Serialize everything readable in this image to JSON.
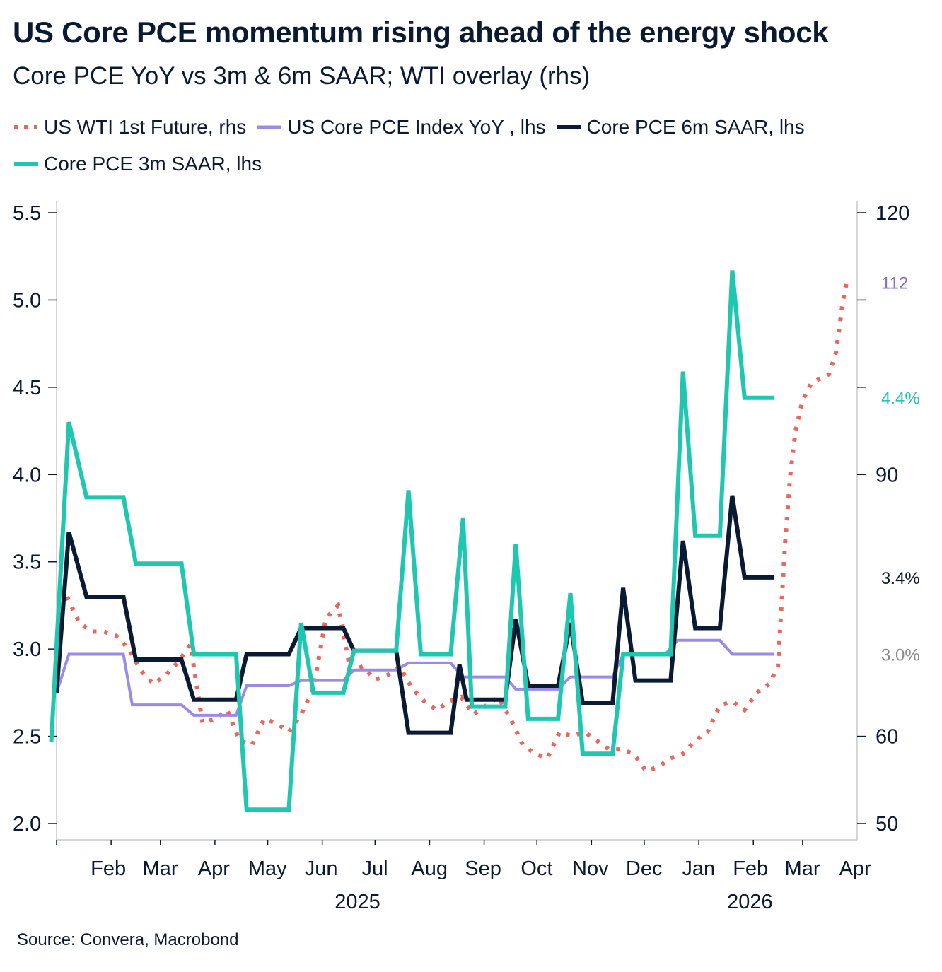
{
  "chart_data": {
    "type": "line",
    "title": "US Core PCE momentum rising ahead of the energy shock",
    "subtitle": "Core PCE YoY vs 3m & 6m SAAR; WTI overlay (rhs)",
    "source": "Source: Convera, Macrobond",
    "legend_placement": "top",
    "grid": false,
    "x_tick_labels": [
      "Feb",
      "Mar",
      "Apr",
      "May",
      "Jun",
      "Jul",
      "Aug",
      "Sep",
      "Oct",
      "Nov",
      "Dec",
      "Jan",
      "Feb",
      "Mar",
      "Apr"
    ],
    "year_labels": [
      "2025",
      "2026"
    ],
    "xlim": [
      "2025-01-15",
      "2026-04-15"
    ],
    "y_left": {
      "ylim": [
        2.0,
        5.5
      ],
      "ticks": [
        "2.0",
        "2.5",
        "3.0",
        "3.5",
        "4.0",
        "4.5",
        "5.0",
        "5.5"
      ]
    },
    "y_right": {
      "ylim": [
        50,
        120
      ],
      "ticks": [
        "50",
        "60",
        "90",
        "120"
      ]
    },
    "series": [
      {
        "name": "US WTI 1st Future, rhs",
        "axis": "right",
        "style": "dotted",
        "color": "#e8685e",
        "points": [
          [
            "2025-01-21",
            76
          ],
          [
            "2025-01-28",
            73
          ],
          [
            "2025-02-04",
            72
          ],
          [
            "2025-02-11",
            72
          ],
          [
            "2025-02-18",
            71.5
          ],
          [
            "2025-02-25",
            70
          ],
          [
            "2025-03-04",
            67.5
          ],
          [
            "2025-03-11",
            66
          ],
          [
            "2025-03-18",
            67
          ],
          [
            "2025-03-25",
            68.5
          ],
          [
            "2025-04-01",
            70.5
          ],
          [
            "2025-04-08",
            61.5
          ],
          [
            "2025-04-15",
            62
          ],
          [
            "2025-04-22",
            63
          ],
          [
            "2025-04-29",
            59.5
          ],
          [
            "2025-05-06",
            59
          ],
          [
            "2025-05-13",
            62
          ],
          [
            "2025-05-20",
            61.5
          ],
          [
            "2025-05-27",
            60.5
          ],
          [
            "2025-06-03",
            62.5
          ],
          [
            "2025-06-10",
            65.5
          ],
          [
            "2025-06-17",
            73.5
          ],
          [
            "2025-06-24",
            75
          ],
          [
            "2025-07-01",
            67.5
          ],
          [
            "2025-07-08",
            68
          ],
          [
            "2025-07-15",
            66.5
          ],
          [
            "2025-07-22",
            67
          ],
          [
            "2025-07-29",
            68
          ],
          [
            "2025-08-05",
            65.5
          ],
          [
            "2025-08-12",
            64
          ],
          [
            "2025-08-19",
            63
          ],
          [
            "2025-08-26",
            64
          ],
          [
            "2025-09-02",
            64.5
          ],
          [
            "2025-09-09",
            62.5
          ],
          [
            "2025-09-16",
            63.5
          ],
          [
            "2025-09-23",
            64.5
          ],
          [
            "2025-09-30",
            62
          ],
          [
            "2025-10-07",
            59
          ],
          [
            "2025-10-14",
            58
          ],
          [
            "2025-10-21",
            57.5
          ],
          [
            "2025-10-28",
            60.5
          ],
          [
            "2025-11-04",
            60
          ],
          [
            "2025-11-11",
            60.5
          ],
          [
            "2025-11-18",
            59.5
          ],
          [
            "2025-11-25",
            58.5
          ],
          [
            "2025-12-02",
            58.5
          ],
          [
            "2025-12-09",
            58
          ],
          [
            "2025-12-16",
            56
          ],
          [
            "2025-12-23",
            56.5
          ],
          [
            "2025-12-30",
            57.5
          ],
          [
            "2026-01-06",
            58
          ],
          [
            "2026-01-13",
            59.5
          ],
          [
            "2026-01-20",
            60.5
          ],
          [
            "2026-01-27",
            63.5
          ],
          [
            "2026-02-03",
            64
          ],
          [
            "2026-02-10",
            63
          ],
          [
            "2026-02-17",
            65
          ],
          [
            "2026-02-24",
            66
          ],
          [
            "2026-03-01",
            68
          ],
          [
            "2026-03-03",
            75
          ],
          [
            "2026-03-05",
            82
          ],
          [
            "2026-03-08",
            90
          ],
          [
            "2026-03-11",
            95
          ],
          [
            "2026-03-15",
            98.5
          ],
          [
            "2026-03-20",
            100.5
          ],
          [
            "2026-03-25",
            101
          ],
          [
            "2026-03-30",
            101.5
          ],
          [
            "2026-04-03",
            104
          ],
          [
            "2026-04-07",
            110
          ],
          [
            "2026-04-09",
            112
          ]
        ]
      },
      {
        "name": "US Core PCE Index YoY , lhs",
        "axis": "left",
        "style": "solid",
        "color": "#9b8ae6",
        "points": [
          [
            "2025-01-15",
            2.75
          ],
          [
            "2025-01-22",
            2.97
          ],
          [
            "2025-02-22",
            2.97
          ],
          [
            "2025-02-27",
            2.68
          ],
          [
            "2025-03-27",
            2.68
          ],
          [
            "2025-04-03",
            2.62
          ],
          [
            "2025-04-27",
            2.62
          ],
          [
            "2025-05-03",
            2.79
          ],
          [
            "2025-05-27",
            2.79
          ],
          [
            "2025-06-03",
            2.82
          ],
          [
            "2025-06-27",
            2.82
          ],
          [
            "2025-07-03",
            2.88
          ],
          [
            "2025-07-27",
            2.88
          ],
          [
            "2025-08-03",
            2.92
          ],
          [
            "2025-08-27",
            2.92
          ],
          [
            "2025-09-03",
            2.84
          ],
          [
            "2025-09-27",
            2.84
          ],
          [
            "2025-10-03",
            2.77
          ],
          [
            "2025-10-27",
            2.77
          ],
          [
            "2025-11-03",
            2.84
          ],
          [
            "2025-11-27",
            2.84
          ],
          [
            "2025-12-03",
            2.97
          ],
          [
            "2025-12-27",
            2.97
          ],
          [
            "2026-01-03",
            3.05
          ],
          [
            "2026-01-27",
            3.05
          ],
          [
            "2026-02-03",
            2.97
          ],
          [
            "2026-02-27",
            2.97
          ]
        ]
      },
      {
        "name": "Core PCE 6m SAAR, lhs",
        "axis": "left",
        "style": "solid",
        "color": "#0b1a33",
        "points": [
          [
            "2025-01-15",
            2.75
          ],
          [
            "2025-01-22",
            3.67
          ],
          [
            "2025-02-01",
            3.3
          ],
          [
            "2025-02-22",
            3.3
          ],
          [
            "2025-03-01",
            2.94
          ],
          [
            "2025-03-27",
            2.94
          ],
          [
            "2025-04-03",
            2.71
          ],
          [
            "2025-04-27",
            2.71
          ],
          [
            "2025-05-03",
            2.97
          ],
          [
            "2025-05-27",
            2.97
          ],
          [
            "2025-06-03",
            3.12
          ],
          [
            "2025-06-27",
            3.12
          ],
          [
            "2025-07-03",
            2.99
          ],
          [
            "2025-07-27",
            2.99
          ],
          [
            "2025-08-03",
            2.52
          ],
          [
            "2025-08-27",
            2.52
          ],
          [
            "2025-09-01",
            2.91
          ],
          [
            "2025-09-05",
            2.71
          ],
          [
            "2025-09-27",
            2.71
          ],
          [
            "2025-10-03",
            3.17
          ],
          [
            "2025-10-10",
            2.79
          ],
          [
            "2025-10-27",
            2.79
          ],
          [
            "2025-11-03",
            3.15
          ],
          [
            "2025-11-10",
            2.69
          ],
          [
            "2025-11-27",
            2.69
          ],
          [
            "2025-12-03",
            3.35
          ],
          [
            "2025-12-10",
            2.82
          ],
          [
            "2025-12-30",
            2.82
          ],
          [
            "2026-01-06",
            3.62
          ],
          [
            "2026-01-13",
            3.12
          ],
          [
            "2026-01-27",
            3.12
          ],
          [
            "2026-02-03",
            3.88
          ],
          [
            "2026-02-10",
            3.41
          ],
          [
            "2026-02-27",
            3.41
          ]
        ]
      },
      {
        "name": "Core PCE 3m SAAR, lhs",
        "axis": "left",
        "style": "solid",
        "color": "#1ec8b0",
        "points": [
          [
            "2025-01-12",
            2.47
          ],
          [
            "2025-01-22",
            4.3
          ],
          [
            "2025-02-01",
            3.87
          ],
          [
            "2025-02-22",
            3.87
          ],
          [
            "2025-03-01",
            3.49
          ],
          [
            "2025-03-27",
            3.49
          ],
          [
            "2025-04-03",
            2.97
          ],
          [
            "2025-04-27",
            2.97
          ],
          [
            "2025-05-03",
            2.08
          ],
          [
            "2025-05-27",
            2.08
          ],
          [
            "2025-06-03",
            3.15
          ],
          [
            "2025-06-10",
            2.75
          ],
          [
            "2025-06-27",
            2.75
          ],
          [
            "2025-07-03",
            2.99
          ],
          [
            "2025-07-27",
            2.99
          ],
          [
            "2025-08-03",
            3.91
          ],
          [
            "2025-08-10",
            2.97
          ],
          [
            "2025-08-27",
            2.97
          ],
          [
            "2025-09-03",
            3.75
          ],
          [
            "2025-09-08",
            2.67
          ],
          [
            "2025-09-27",
            2.67
          ],
          [
            "2025-10-03",
            3.6
          ],
          [
            "2025-10-10",
            2.6
          ],
          [
            "2025-10-27",
            2.6
          ],
          [
            "2025-11-03",
            3.32
          ],
          [
            "2025-11-10",
            2.4
          ],
          [
            "2025-11-27",
            2.4
          ],
          [
            "2025-12-03",
            2.97
          ],
          [
            "2025-12-30",
            2.97
          ],
          [
            "2026-01-06",
            4.59
          ],
          [
            "2026-01-13",
            3.65
          ],
          [
            "2026-01-27",
            3.65
          ],
          [
            "2026-02-03",
            5.17
          ],
          [
            "2026-02-10",
            4.44
          ],
          [
            "2026-02-27",
            4.44
          ]
        ]
      }
    ],
    "end_labels": [
      {
        "text": "112",
        "color": "#8b6cc1",
        "axis": "right",
        "value": 112
      },
      {
        "text": "4.4%",
        "color": "#1ec8b0",
        "axis": "left",
        "value": 4.44
      },
      {
        "text": "3.4%",
        "color": "#0b1a33",
        "axis": "left",
        "value": 3.41
      },
      {
        "text": "3.0%",
        "color": "#8a8a8a",
        "axis": "left",
        "value": 2.97
      }
    ]
  }
}
